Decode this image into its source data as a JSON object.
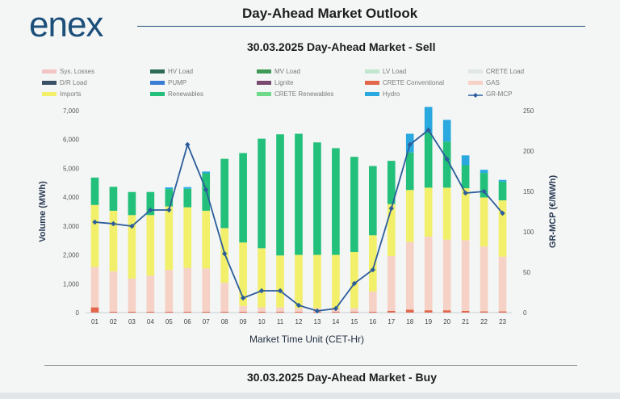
{
  "brand": {
    "logo_text": "enex"
  },
  "header": {
    "title": "Day-Ahead Market Outlook"
  },
  "chart_title": "30.03.2025  Day-Ahead Market - Sell",
  "footer_title": "30.03.2025  Day-Ahead Market - Buy",
  "chart_data": {
    "type": "bar",
    "stacked": true,
    "title": "30.03.2025  Day-Ahead Market - Sell",
    "xlabel": "Market Time Unit (CET-Hr)",
    "ylabel": "Volume (MWh)",
    "y2label": "GR-MCP (€/MWh)",
    "ylim": [
      0,
      7000
    ],
    "y2lim": [
      0,
      250
    ],
    "yticks": [
      "0",
      "1,000",
      "2,000",
      "3,000",
      "4,000",
      "5,000",
      "6,000",
      "7,000"
    ],
    "y2ticks": [
      "0",
      "50",
      "100",
      "150",
      "200",
      "250"
    ],
    "categories": [
      "01",
      "02",
      "03",
      "04",
      "05",
      "06",
      "07",
      "08",
      "09",
      "10",
      "11",
      "12",
      "13",
      "14",
      "15",
      "16",
      "17",
      "18",
      "19",
      "20",
      "21",
      "22",
      "23"
    ],
    "colors": {
      "Sys. Losses": "#f2c4c4",
      "HV Load": "#2b6b58",
      "MV Load": "#3f9a55",
      "LV Load": "#bfe6cf",
      "CRETE Load": "#dfe8e4",
      "D/R Load": "#3a4f66",
      "PUMP": "#3a7bd5",
      "Lignite": "#7a4a6e",
      "CRETE Conventional": "#e2664a",
      "GAS": "#f6d2c6",
      "Imports": "#f2ef6a",
      "Renewables": "#22c07a",
      "CRETE Renewables": "#6fd98a",
      "Hydro": "#2aa8e0",
      "GR-MCP": "#2b5d9b"
    },
    "series": [
      {
        "name": "CRETE Conventional",
        "values": [
          180,
          30,
          30,
          30,
          30,
          30,
          30,
          30,
          30,
          30,
          30,
          30,
          30,
          30,
          30,
          30,
          60,
          100,
          80,
          80,
          60,
          40,
          40
        ]
      },
      {
        "name": "GAS",
        "values": [
          1400,
          1400,
          1150,
          1250,
          1450,
          1520,
          1500,
          1000,
          200,
          150,
          150,
          120,
          120,
          120,
          120,
          700,
          1900,
          2350,
          2550,
          2450,
          2450,
          2250,
          1900
        ]
      },
      {
        "name": "Imports",
        "values": [
          2150,
          2100,
          2200,
          2100,
          2200,
          2100,
          2000,
          1900,
          2200,
          2050,
          1800,
          1850,
          1850,
          1850,
          1950,
          1950,
          1800,
          1800,
          1700,
          1800,
          1800,
          1700,
          1950
        ]
      },
      {
        "name": "Renewables",
        "values": [
          950,
          830,
          800,
          800,
          600,
          640,
          1300,
          2400,
          3100,
          3800,
          4200,
          4200,
          3900,
          3700,
          3300,
          2400,
          1500,
          1300,
          1900,
          1600,
          800,
          850,
          650
        ]
      },
      {
        "name": "Hydro",
        "values": [
          0,
          0,
          0,
          0,
          60,
          60,
          60,
          0,
          0,
          0,
          0,
          0,
          0,
          0,
          0,
          0,
          0,
          650,
          900,
          750,
          340,
          110,
          60
        ]
      },
      {
        "name": "GR-MCP",
        "axis": "secondary",
        "type": "line",
        "values": [
          112,
          110,
          107,
          127,
          127,
          208,
          152,
          73,
          18,
          27,
          27,
          9,
          2,
          5,
          36,
          53,
          129,
          208,
          226,
          190,
          148,
          150,
          123
        ]
      }
    ],
    "legend": [
      "Sys. Losses",
      "HV Load",
      "MV Load",
      "LV Load",
      "CRETE Load",
      "D/R Load",
      "PUMP",
      "Lignite",
      "CRETE Conventional",
      "GAS",
      "Imports",
      "Renewables",
      "CRETE Renewables",
      "Hydro",
      "GR-MCP"
    ]
  }
}
